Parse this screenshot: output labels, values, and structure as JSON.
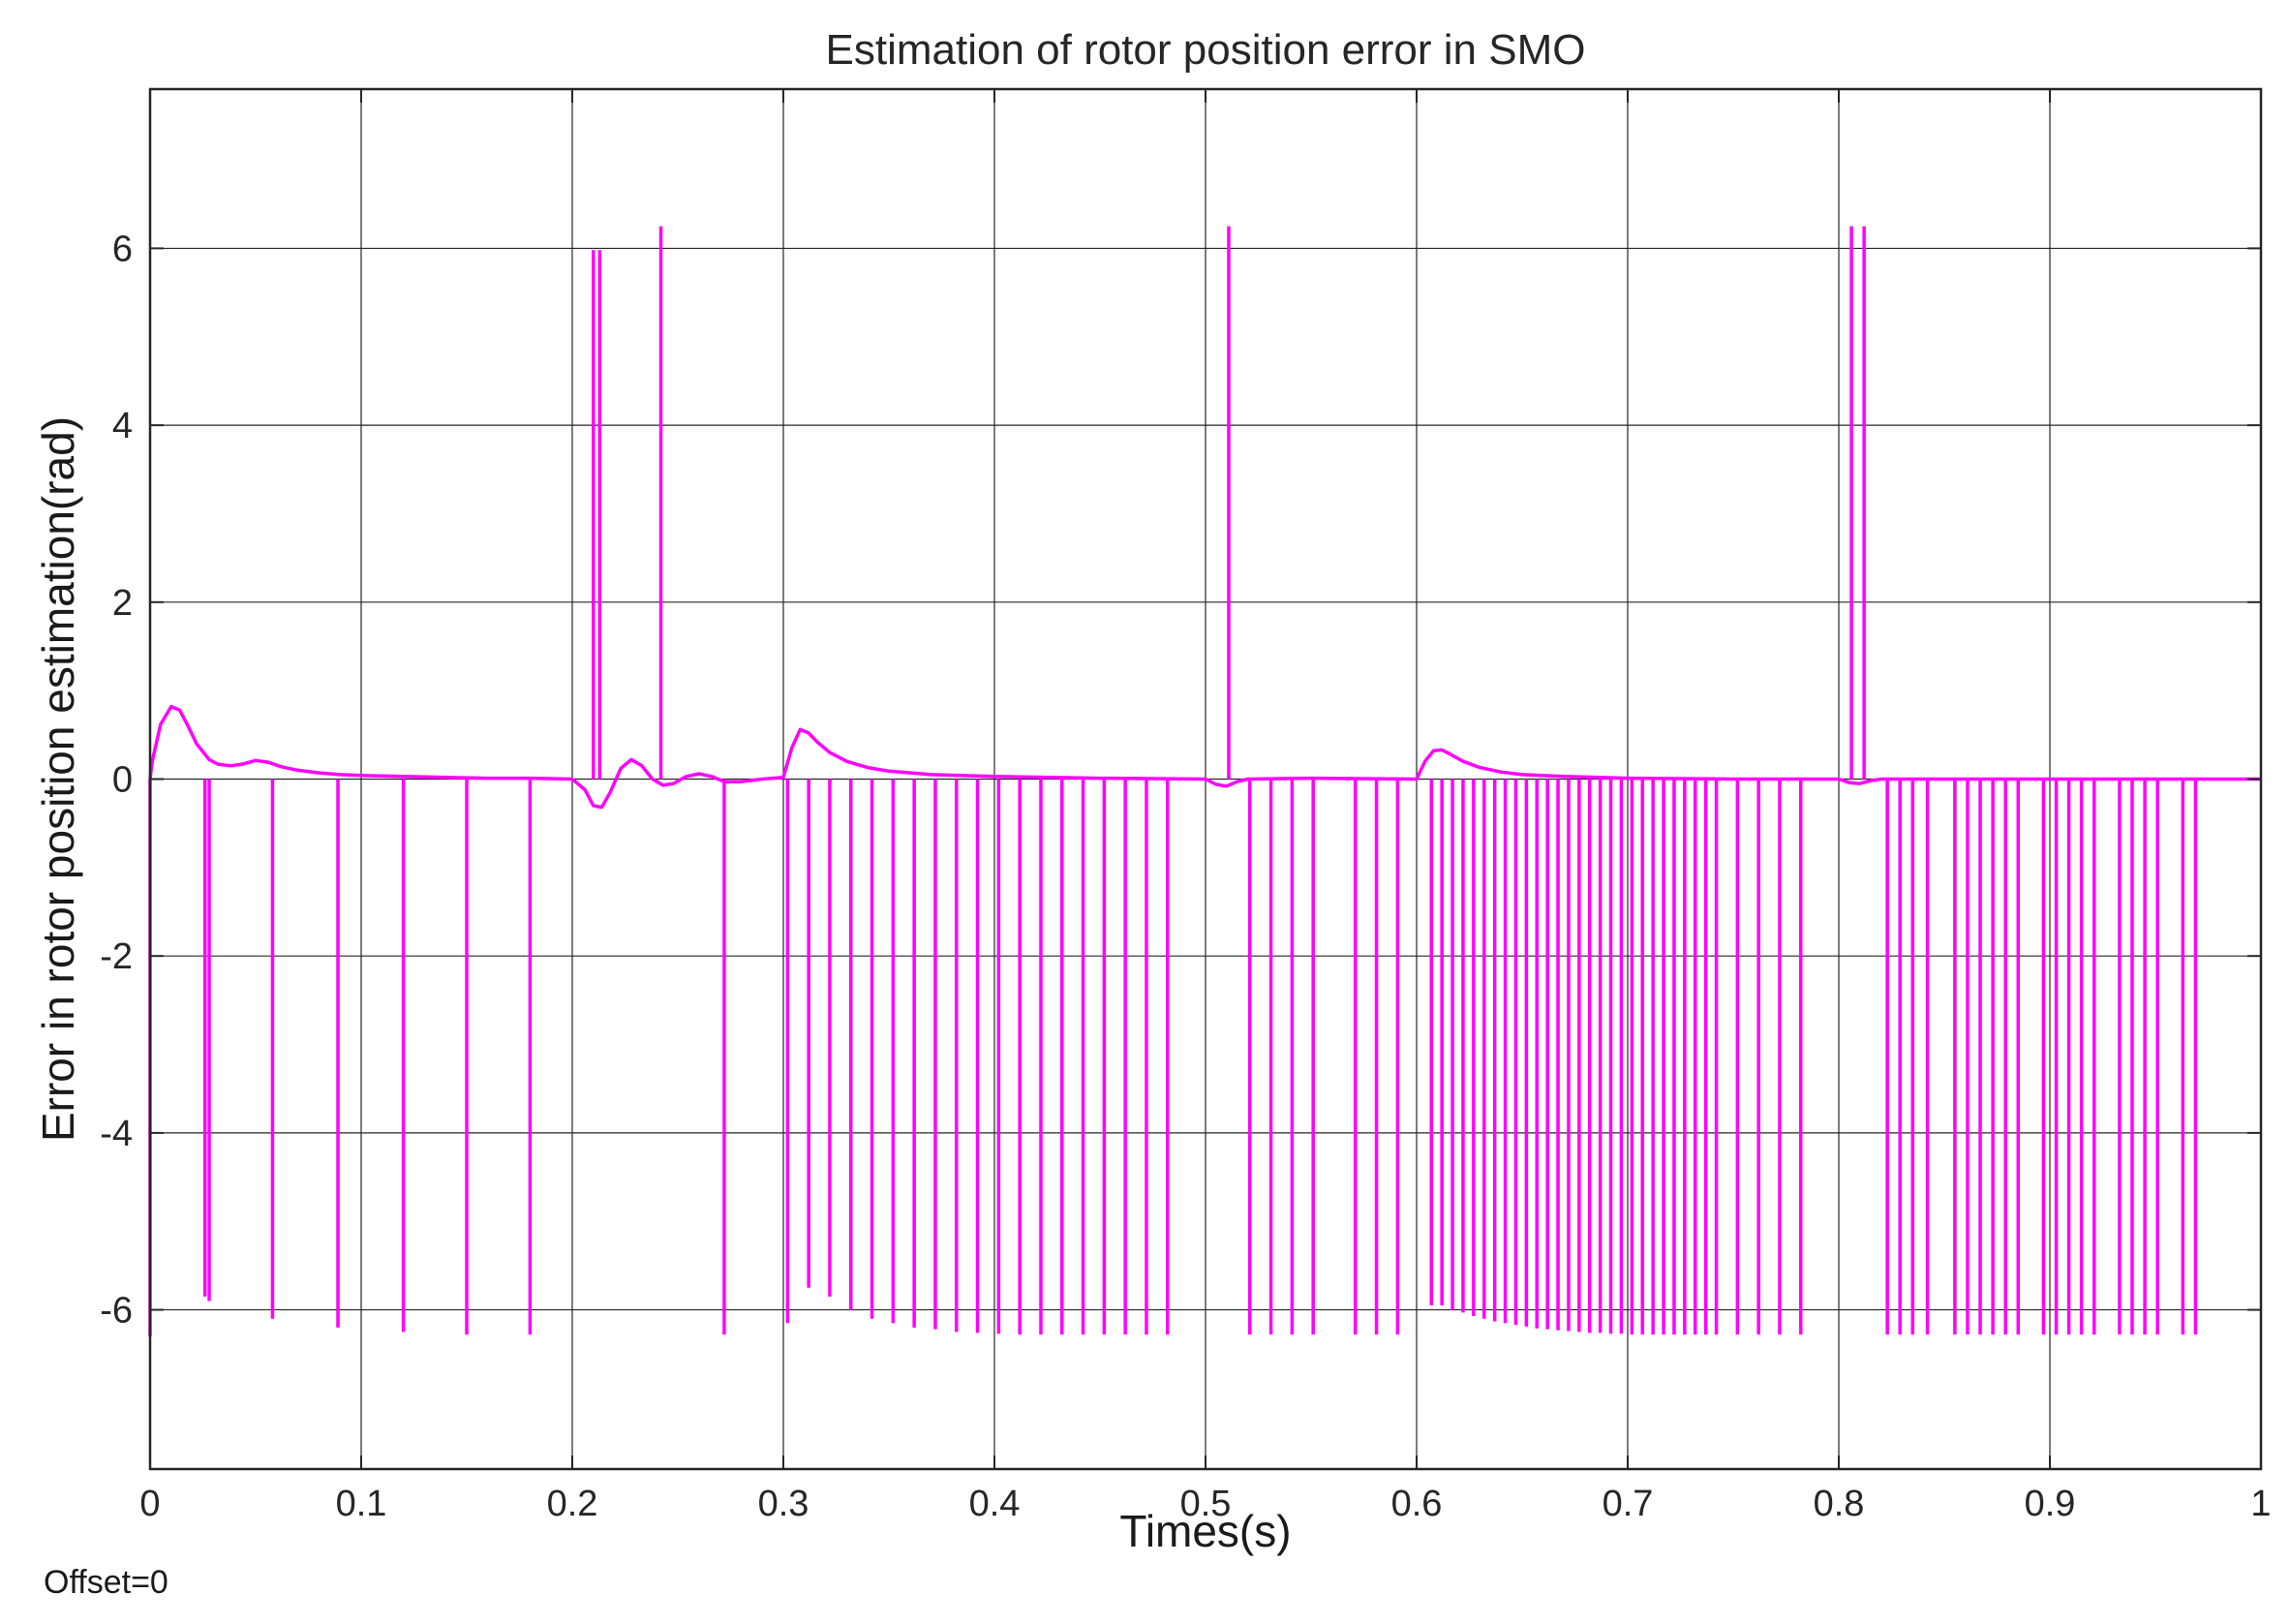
{
  "chart_data": {
    "type": "line",
    "title": "Estimation of rotor position error in SMO",
    "xlabel": "Times(s)",
    "ylabel": "Error in rotor position estimation(rad)",
    "footer": "Offset=0",
    "xlim": [
      0,
      1
    ],
    "ylim": [
      -7.8,
      7.8
    ],
    "xticks": [
      0,
      0.1,
      0.2,
      0.3,
      0.4,
      0.5,
      0.6,
      0.7,
      0.8,
      0.9,
      1
    ],
    "xtick_labels": [
      "0",
      "0.1",
      "0.2",
      "0.3",
      "0.4",
      "0.5",
      "0.6",
      "0.7",
      "0.8",
      "0.9",
      "1"
    ],
    "yticks": [
      -6,
      -4,
      -2,
      0,
      2,
      4,
      6
    ],
    "ytick_labels": [
      "-6",
      "-4",
      "-2",
      "0",
      "2",
      "4",
      "6"
    ],
    "grid": true,
    "series": [
      {
        "color": "#ff00ff",
        "x": [
          0,
          0.001,
          0.005,
          0.01,
          0.014,
          0.018,
          0.022,
          0.026,
          0.028,
          0.032,
          0.038,
          0.044,
          0.05,
          0.056,
          0.062,
          0.07,
          0.08,
          0.09,
          0.1,
          0.12,
          0.14,
          0.16,
          0.18,
          0.2,
          0.206,
          0.21,
          0.214,
          0.218,
          0.223,
          0.228,
          0.233,
          0.238,
          0.243,
          0.248,
          0.254,
          0.26,
          0.266,
          0.272,
          0.28,
          0.29,
          0.3,
          0.304,
          0.308,
          0.312,
          0.316,
          0.322,
          0.33,
          0.34,
          0.35,
          0.37,
          0.4,
          0.45,
          0.5,
          0.505,
          0.51,
          0.515,
          0.52,
          0.55,
          0.6,
          0.604,
          0.608,
          0.612,
          0.616,
          0.622,
          0.63,
          0.64,
          0.65,
          0.67,
          0.7,
          0.75,
          0.8,
          0.805,
          0.81,
          0.815,
          0.82,
          0.9,
          1.0
        ],
        "y": [
          0,
          0.2,
          0.62,
          0.82,
          0.78,
          0.6,
          0.4,
          0.28,
          0.22,
          0.17,
          0.15,
          0.17,
          0.21,
          0.19,
          0.14,
          0.1,
          0.07,
          0.05,
          0.04,
          0.03,
          0.02,
          0.01,
          0.01,
          0.0,
          -0.12,
          -0.3,
          -0.32,
          -0.15,
          0.12,
          0.22,
          0.15,
          0.0,
          -0.07,
          -0.05,
          0.03,
          0.06,
          0.03,
          -0.03,
          -0.03,
          0.0,
          0.02,
          0.35,
          0.56,
          0.52,
          0.42,
          0.3,
          0.2,
          0.13,
          0.09,
          0.05,
          0.03,
          0.01,
          0.0,
          -0.06,
          -0.08,
          -0.03,
          0.0,
          0.01,
          0.0,
          0.2,
          0.32,
          0.33,
          0.28,
          0.2,
          0.13,
          0.08,
          0.05,
          0.03,
          0.01,
          0.0,
          0.0,
          -0.04,
          -0.05,
          -0.02,
          0.0,
          0.0,
          0.0
        ]
      }
    ],
    "spikes": [
      {
        "x": 0.0,
        "y": -6.3
      },
      {
        "x": 0.026,
        "y": -5.85
      },
      {
        "x": 0.028,
        "y": -5.9
      },
      {
        "x": 0.058,
        "y": -6.1
      },
      {
        "x": 0.089,
        "y": -6.2
      },
      {
        "x": 0.12,
        "y": -6.25
      },
      {
        "x": 0.15,
        "y": -6.28
      },
      {
        "x": 0.18,
        "y": -6.28
      },
      {
        "x": 0.21,
        "y": 5.98
      },
      {
        "x": 0.213,
        "y": 5.98
      },
      {
        "x": 0.242,
        "y": 6.25
      },
      {
        "x": 0.272,
        "y": -6.28
      },
      {
        "x": 0.302,
        "y": -6.15
      },
      {
        "x": 0.312,
        "y": -5.75
      },
      {
        "x": 0.322,
        "y": -5.85
      },
      {
        "x": 0.332,
        "y": -6.0
      },
      {
        "x": 0.342,
        "y": -6.1
      },
      {
        "x": 0.352,
        "y": -6.15
      },
      {
        "x": 0.362,
        "y": -6.2
      },
      {
        "x": 0.372,
        "y": -6.22
      },
      {
        "x": 0.382,
        "y": -6.25
      },
      {
        "x": 0.392,
        "y": -6.26
      },
      {
        "x": 0.402,
        "y": -6.27
      },
      {
        "x": 0.412,
        "y": -6.28
      },
      {
        "x": 0.422,
        "y": -6.28
      },
      {
        "x": 0.432,
        "y": -6.28
      },
      {
        "x": 0.442,
        "y": -6.28
      },
      {
        "x": 0.452,
        "y": -6.28
      },
      {
        "x": 0.462,
        "y": -6.28
      },
      {
        "x": 0.472,
        "y": -6.28
      },
      {
        "x": 0.482,
        "y": -6.28
      },
      {
        "x": 0.511,
        "y": 6.25
      },
      {
        "x": 0.521,
        "y": -6.28
      },
      {
        "x": 0.531,
        "y": -6.28
      },
      {
        "x": 0.541,
        "y": -6.28
      },
      {
        "x": 0.551,
        "y": -6.28
      },
      {
        "x": 0.571,
        "y": -6.28
      },
      {
        "x": 0.581,
        "y": -6.28
      },
      {
        "x": 0.591,
        "y": -6.28
      },
      {
        "x": 0.607,
        "y": -5.95
      },
      {
        "x": 0.612,
        "y": -5.95
      },
      {
        "x": 0.617,
        "y": -6.0
      },
      {
        "x": 0.622,
        "y": -6.03
      },
      {
        "x": 0.627,
        "y": -6.07
      },
      {
        "x": 0.632,
        "y": -6.1
      },
      {
        "x": 0.637,
        "y": -6.13
      },
      {
        "x": 0.642,
        "y": -6.15
      },
      {
        "x": 0.647,
        "y": -6.17
      },
      {
        "x": 0.652,
        "y": -6.19
      },
      {
        "x": 0.657,
        "y": -6.21
      },
      {
        "x": 0.662,
        "y": -6.22
      },
      {
        "x": 0.667,
        "y": -6.23
      },
      {
        "x": 0.672,
        "y": -6.24
      },
      {
        "x": 0.677,
        "y": -6.25
      },
      {
        "x": 0.682,
        "y": -6.26
      },
      {
        "x": 0.687,
        "y": -6.26
      },
      {
        "x": 0.692,
        "y": -6.27
      },
      {
        "x": 0.697,
        "y": -6.27
      },
      {
        "x": 0.702,
        "y": -6.28
      },
      {
        "x": 0.707,
        "y": -6.28
      },
      {
        "x": 0.712,
        "y": -6.28
      },
      {
        "x": 0.717,
        "y": -6.28
      },
      {
        "x": 0.722,
        "y": -6.28
      },
      {
        "x": 0.727,
        "y": -6.28
      },
      {
        "x": 0.732,
        "y": -6.28
      },
      {
        "x": 0.737,
        "y": -6.28
      },
      {
        "x": 0.742,
        "y": -6.28
      },
      {
        "x": 0.752,
        "y": -6.28
      },
      {
        "x": 0.762,
        "y": -6.28
      },
      {
        "x": 0.772,
        "y": -6.28
      },
      {
        "x": 0.782,
        "y": -6.28
      },
      {
        "x": 0.806,
        "y": 6.25
      },
      {
        "x": 0.812,
        "y": 6.25
      },
      {
        "x": 0.823,
        "y": -6.28
      },
      {
        "x": 0.829,
        "y": -6.28
      },
      {
        "x": 0.835,
        "y": -6.28
      },
      {
        "x": 0.842,
        "y": -6.28
      },
      {
        "x": 0.855,
        "y": -6.28
      },
      {
        "x": 0.861,
        "y": -6.28
      },
      {
        "x": 0.867,
        "y": -6.28
      },
      {
        "x": 0.873,
        "y": -6.28
      },
      {
        "x": 0.879,
        "y": -6.28
      },
      {
        "x": 0.885,
        "y": -6.28
      },
      {
        "x": 0.897,
        "y": -6.28
      },
      {
        "x": 0.903,
        "y": -6.28
      },
      {
        "x": 0.909,
        "y": -6.28
      },
      {
        "x": 0.915,
        "y": -6.28
      },
      {
        "x": 0.921,
        "y": -6.28
      },
      {
        "x": 0.933,
        "y": -6.28
      },
      {
        "x": 0.939,
        "y": -6.28
      },
      {
        "x": 0.945,
        "y": -6.28
      },
      {
        "x": 0.951,
        "y": -6.28
      },
      {
        "x": 0.963,
        "y": -6.28
      },
      {
        "x": 0.969,
        "y": -6.28
      }
    ]
  }
}
